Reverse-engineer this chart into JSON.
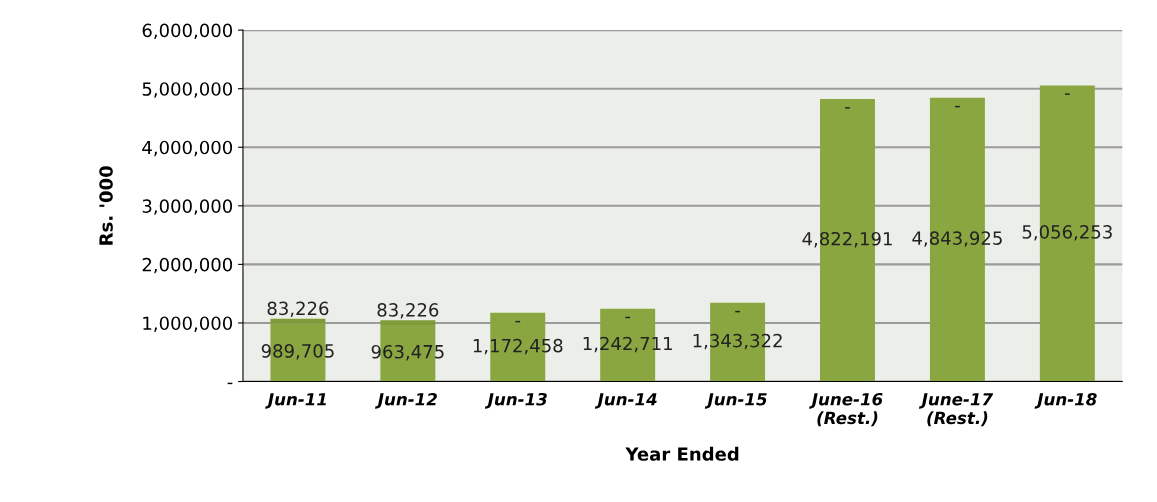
{
  "chart_data": {
    "type": "bar",
    "stacked": true,
    "xlabel": "Year Ended",
    "ylabel": "Rs. '000",
    "categories": [
      "Jun-11",
      "Jun-12",
      "Jun-13",
      "Jun-14",
      "Jun-15",
      "June-16\n(Rest.)",
      "June-17\n(Rest.)",
      "Jun-18"
    ],
    "series": [
      {
        "color": "#8aa640",
        "values": [
          989705,
          963475,
          1172458,
          1242711,
          1343322,
          4822191,
          4843925,
          5056253
        ],
        "value_labels": [
          "989,705",
          "963,475",
          "1,172,458",
          "1,242,711",
          "1,343,322",
          "4,822,191",
          "4,843,925",
          "5,056,253"
        ]
      },
      {
        "color": "#7f9c38",
        "values": [
          83226,
          83226,
          0,
          0,
          0,
          0,
          0,
          0
        ],
        "value_labels": [
          "83,226",
          "83,226",
          "-",
          "-",
          "-",
          "-",
          "-",
          "-"
        ]
      }
    ],
    "ylim": [
      0,
      6000000
    ],
    "yticks": [
      {
        "value": 0,
        "label": "-"
      },
      {
        "value": 1000000,
        "label": "1,000,000"
      },
      {
        "value": 2000000,
        "label": "2,000,000"
      },
      {
        "value": 3000000,
        "label": "3,000,000"
      },
      {
        "value": 4000000,
        "label": "4,000,000"
      },
      {
        "value": 5000000,
        "label": "5,000,000"
      },
      {
        "value": 6000000,
        "label": "6,000,000"
      }
    ],
    "grid": "y"
  }
}
